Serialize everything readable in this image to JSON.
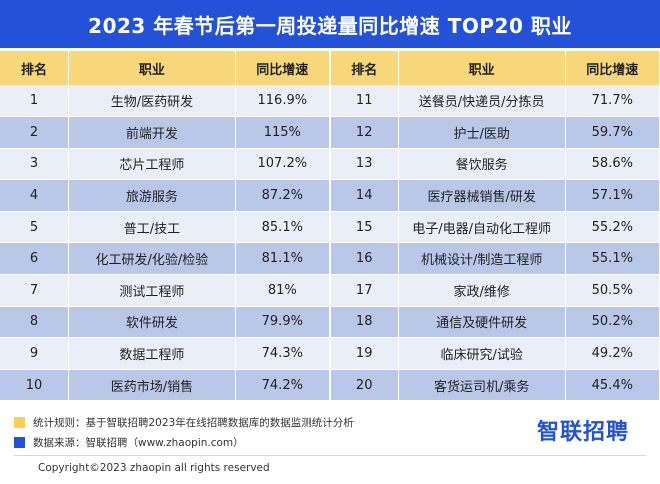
{
  "title": "2023 年春节后第一周投递量同比增速 TOP20 职业",
  "headers": {
    "rank": "排名",
    "job": "职业",
    "growth": "同比增速"
  },
  "left_rows": [
    {
      "rank": "1",
      "job": "生物/医药研发",
      "growth": "116.9%"
    },
    {
      "rank": "2",
      "job": "前端开发",
      "growth": "115%"
    },
    {
      "rank": "3",
      "job": "芯片工程师",
      "growth": "107.2%"
    },
    {
      "rank": "4",
      "job": "旅游服务",
      "growth": "87.2%"
    },
    {
      "rank": "5",
      "job": "普工/技工",
      "growth": "85.1%"
    },
    {
      "rank": "6",
      "job": "化工研发/化验/检验",
      "growth": "81.1%"
    },
    {
      "rank": "7",
      "job": "测试工程师",
      "growth": "81%"
    },
    {
      "rank": "8",
      "job": "软件研发",
      "growth": "79.9%"
    },
    {
      "rank": "9",
      "job": "数据工程师",
      "growth": "74.3%"
    },
    {
      "rank": "10",
      "job": "医药市场/销售",
      "growth": "74.2%"
    }
  ],
  "right_rows": [
    {
      "rank": "11",
      "job": "送餐员/快递员/分拣员",
      "growth": "71.7%"
    },
    {
      "rank": "12",
      "job": "护士/医助",
      "growth": "59.7%"
    },
    {
      "rank": "13",
      "job": "餐饮服务",
      "growth": "58.6%"
    },
    {
      "rank": "14",
      "job": "医疗器械销售/研发",
      "growth": "57.1%"
    },
    {
      "rank": "15",
      "job": "电子/电器/自动化工程师",
      "growth": "55.2%"
    },
    {
      "rank": "16",
      "job": "机械设计/制造工程师",
      "growth": "55.1%"
    },
    {
      "rank": "17",
      "job": "家政/维修",
      "growth": "50.5%"
    },
    {
      "rank": "18",
      "job": "通信及硬件研发",
      "growth": "50.2%"
    },
    {
      "rank": "19",
      "job": "临床研究/试验",
      "growth": "49.2%"
    },
    {
      "rank": "20",
      "job": "客货运司机/乘务",
      "growth": "45.4%"
    }
  ],
  "notes": {
    "rule": "统计规则：基于智联招聘2023年在线招聘数据库的数据监测统计分析",
    "source": "数据来源：智联招聘（www.zhaopin.com）"
  },
  "logo": "智联招聘",
  "copyright": "Copyright©2023 zhaopin all rights reserved",
  "colors": {
    "title_bg": "#2352d8",
    "header_bg": "#f7d77a",
    "row_light": "#eaeef7",
    "row_dark": "#b9c8e8"
  }
}
